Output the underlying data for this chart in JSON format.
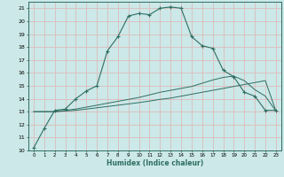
{
  "xlabel": "Humidex (Indice chaleur)",
  "bg_color": "#cce8e8",
  "grid_color": "#ddbbbb",
  "line_color": "#2e6e62",
  "xlim": [
    -0.5,
    23.5
  ],
  "ylim": [
    10,
    21.5
  ],
  "yticks": [
    10,
    11,
    12,
    13,
    14,
    15,
    16,
    17,
    18,
    19,
    20,
    21
  ],
  "xticks": [
    0,
    1,
    2,
    3,
    4,
    5,
    6,
    7,
    8,
    9,
    10,
    11,
    12,
    13,
    14,
    15,
    16,
    17,
    18,
    19,
    20,
    21,
    22,
    23
  ],
  "series1_x": [
    0,
    1,
    2,
    3,
    4,
    5,
    6,
    7,
    8,
    9,
    10,
    11,
    12,
    13,
    14,
    15,
    16,
    17,
    18,
    19,
    20,
    21,
    22,
    23
  ],
  "series1_y": [
    10.2,
    11.7,
    13.1,
    13.2,
    14.0,
    14.6,
    15.0,
    17.7,
    18.8,
    20.4,
    20.6,
    20.5,
    21.0,
    21.1,
    21.0,
    18.8,
    18.1,
    17.9,
    16.2,
    15.7,
    14.5,
    14.2,
    13.1,
    13.1
  ],
  "series2_x": [
    0,
    1,
    2,
    3,
    4,
    5,
    6,
    7,
    8,
    9,
    10,
    11,
    12,
    13,
    14,
    15,
    16,
    17,
    18,
    19,
    20,
    21,
    22,
    23
  ],
  "series2_y": [
    13.0,
    13.0,
    13.0,
    13.05,
    13.1,
    13.2,
    13.3,
    13.4,
    13.5,
    13.6,
    13.7,
    13.82,
    13.95,
    14.05,
    14.2,
    14.35,
    14.5,
    14.65,
    14.8,
    14.95,
    15.1,
    15.25,
    15.4,
    13.05
  ],
  "series3_x": [
    0,
    1,
    2,
    3,
    4,
    5,
    6,
    7,
    8,
    9,
    10,
    11,
    12,
    13,
    14,
    15,
    16,
    17,
    18,
    19,
    20,
    21,
    22,
    23
  ],
  "series3_y": [
    13.0,
    13.0,
    13.0,
    13.1,
    13.2,
    13.35,
    13.5,
    13.65,
    13.8,
    13.95,
    14.1,
    14.3,
    14.5,
    14.65,
    14.8,
    14.95,
    15.2,
    15.45,
    15.65,
    15.75,
    15.4,
    14.7,
    14.2,
    13.05
  ]
}
